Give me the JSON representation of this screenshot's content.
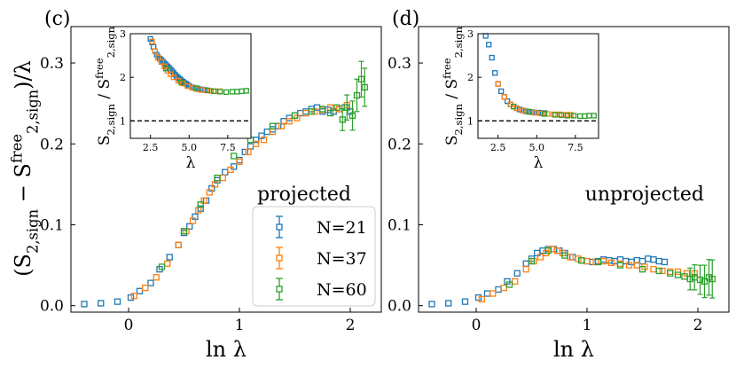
{
  "chart_data": {
    "type": "scatter",
    "shared_ylabel": "(S_2,sign − S^free_2,sign)/λ",
    "legend": {
      "placement": "lower-right of panel (c)",
      "entries": [
        {
          "name": "N=21",
          "color": "#1f77b4"
        },
        {
          "name": "N=37",
          "color": "#ff7f0e"
        },
        {
          "name": "N=60",
          "color": "#2ca02c"
        }
      ]
    },
    "panels": [
      {
        "panel_label": "(c)",
        "annotation": "projected",
        "xlabel": "ln λ",
        "xlim": [
          -0.52,
          2.28
        ],
        "ylim": [
          -0.008,
          0.345
        ],
        "xticks": [
          0,
          1,
          2
        ],
        "yticks": [
          0.0,
          0.1,
          0.2,
          0.3
        ],
        "series": [
          {
            "name": "N=21",
            "color": "#1f77b4",
            "x": [
              -0.4,
              -0.25,
              -0.1,
              0.02,
              0.1,
              0.2,
              0.28,
              0.37,
              0.45,
              0.5,
              0.55,
              0.6,
              0.65,
              0.7,
              0.75,
              0.8,
              0.87,
              0.95,
              1.0,
              1.05,
              1.1,
              1.15,
              1.2,
              1.25,
              1.3,
              1.35,
              1.4,
              1.45,
              1.5,
              1.55,
              1.6,
              1.65,
              1.7,
              1.75,
              1.8,
              1.85,
              1.9,
              1.95,
              2.0
            ],
            "y": [
              0.002,
              0.003,
              0.005,
              0.01,
              0.018,
              0.028,
              0.045,
              0.06,
              0.075,
              0.09,
              0.098,
              0.11,
              0.12,
              0.13,
              0.145,
              0.155,
              0.165,
              0.172,
              0.18,
              0.19,
              0.197,
              0.205,
              0.21,
              0.215,
              0.218,
              0.222,
              0.228,
              0.232,
              0.235,
              0.238,
              0.24,
              0.243,
              0.245,
              0.24,
              0.242,
              0.24,
              0.243,
              0.245,
              0.24
            ]
          },
          {
            "name": "N=37",
            "color": "#ff7f0e",
            "x": [
              0.05,
              0.15,
              0.25,
              0.35,
              0.45,
              0.52,
              0.58,
              0.63,
              0.68,
              0.73,
              0.78,
              0.85,
              0.92,
              1.0,
              1.08,
              1.15,
              1.22,
              1.3,
              1.38,
              1.45,
              1.52,
              1.6,
              1.68,
              1.75,
              1.82,
              1.9,
              1.97
            ],
            "y": [
              0.012,
              0.022,
              0.035,
              0.052,
              0.075,
              0.092,
              0.105,
              0.118,
              0.13,
              0.14,
              0.15,
              0.158,
              0.168,
              0.178,
              0.19,
              0.2,
              0.205,
              0.215,
              0.222,
              0.228,
              0.232,
              0.238,
              0.24,
              0.242,
              0.245,
              0.243,
              0.248
            ]
          },
          {
            "name": "N=60",
            "color": "#2ca02c",
            "x": [
              0.3,
              0.5,
              0.65,
              0.8,
              0.95,
              1.1,
              1.3,
              1.5,
              1.65,
              1.75,
              1.82,
              1.88,
              1.93,
              1.97,
              2.02,
              2.06,
              2.1,
              2.13
            ],
            "y": [
              0.048,
              0.092,
              0.125,
              0.158,
              0.185,
              0.205,
              0.222,
              0.235,
              0.24,
              0.243,
              0.238,
              0.245,
              0.23,
              0.245,
              0.235,
              0.26,
              0.28,
              0.27
            ]
          }
        ],
        "inset": {
          "xlabel": "λ",
          "ylabel": "S_2,sign / S^free_2,sign",
          "xlim": [
            1.2,
            9.0
          ],
          "ylim": [
            0.6,
            3.0
          ],
          "xticks": [
            2.5,
            5.0,
            7.5
          ],
          "yticks": [
            1,
            2,
            3
          ],
          "reference_line": {
            "y": 1,
            "style": "dashed"
          },
          "series": [
            {
              "name": "N=21",
              "color": "#1f77b4",
              "x": [
                2.5,
                2.6,
                2.7,
                2.8,
                2.9,
                3.0,
                3.1,
                3.2,
                3.3,
                3.4,
                3.5,
                3.6,
                3.7,
                3.8,
                3.9,
                4.0,
                4.1,
                4.2,
                4.3,
                4.4,
                4.5,
                4.6,
                4.7,
                4.8,
                4.9,
                5.0,
                5.2,
                5.4,
                5.6,
                5.8,
                6.0
              ],
              "y": [
                2.88,
                2.8,
                2.7,
                2.6,
                2.52,
                2.46,
                2.43,
                2.4,
                2.36,
                2.32,
                2.29,
                2.25,
                2.22,
                2.18,
                2.14,
                2.1,
                2.06,
                2.02,
                1.99,
                1.96,
                1.93,
                1.9,
                1.87,
                1.85,
                1.83,
                1.8,
                1.77,
                1.75,
                1.73,
                1.72,
                1.71
              ]
            },
            {
              "name": "N=37",
              "color": "#ff7f0e",
              "x": [
                2.6,
                2.8,
                3.0,
                3.2,
                3.4,
                3.6,
                3.8,
                4.0,
                4.3,
                4.6,
                4.9,
                5.2,
                5.5,
                5.8,
                6.1,
                6.4,
                6.7,
                7.0
              ],
              "y": [
                2.82,
                2.6,
                2.45,
                2.35,
                2.25,
                2.15,
                2.07,
                2.0,
                1.92,
                1.86,
                1.8,
                1.76,
                1.73,
                1.71,
                1.7,
                1.69,
                1.68,
                1.68
              ]
            },
            {
              "name": "N=60",
              "color": "#2ca02c",
              "x": [
                3.5,
                4.5,
                5.5,
                6.2,
                6.6,
                7.0,
                7.4,
                7.8,
                8.1,
                8.4,
                8.7
              ],
              "y": [
                2.2,
                1.88,
                1.75,
                1.7,
                1.68,
                1.67,
                1.66,
                1.67,
                1.67,
                1.68,
                1.69
              ]
            }
          ]
        }
      },
      {
        "panel_label": "(d)",
        "annotation": "unprojected",
        "xlabel": "ln λ",
        "xlim": [
          -0.52,
          2.28
        ],
        "ylim": [
          -0.008,
          0.345
        ],
        "xticks": [
          0,
          1,
          2
        ],
        "yticks": [
          0.0,
          0.1,
          0.2,
          0.3
        ],
        "series": [
          {
            "name": "N=21",
            "color": "#1f77b4",
            "x": [
              -0.4,
              -0.25,
              -0.1,
              0.02,
              0.1,
              0.2,
              0.28,
              0.37,
              0.45,
              0.5,
              0.55,
              0.6,
              0.65,
              0.7,
              0.75,
              0.8,
              0.87,
              0.95,
              1.0,
              1.05,
              1.1,
              1.15,
              1.2,
              1.25,
              1.3,
              1.35,
              1.4,
              1.45,
              1.5,
              1.55,
              1.6,
              1.65,
              1.7
            ],
            "y": [
              0.002,
              0.003,
              0.005,
              0.01,
              0.015,
              0.02,
              0.03,
              0.04,
              0.052,
              0.058,
              0.065,
              0.068,
              0.07,
              0.07,
              0.068,
              0.065,
              0.06,
              0.056,
              0.055,
              0.054,
              0.055,
              0.057,
              0.056,
              0.055,
              0.057,
              0.055,
              0.054,
              0.056,
              0.055,
              0.058,
              0.057,
              0.055,
              0.054
            ]
          },
          {
            "name": "N=37",
            "color": "#ff7f0e",
            "x": [
              0.05,
              0.15,
              0.25,
              0.35,
              0.45,
              0.52,
              0.58,
              0.63,
              0.68,
              0.73,
              0.78,
              0.85,
              0.92,
              1.0,
              1.08,
              1.15,
              1.22,
              1.3,
              1.38,
              1.45,
              1.52,
              1.6,
              1.68,
              1.75,
              1.82,
              1.9,
              1.97
            ],
            "y": [
              0.008,
              0.015,
              0.022,
              0.03,
              0.045,
              0.055,
              0.06,
              0.065,
              0.07,
              0.068,
              0.065,
              0.06,
              0.058,
              0.055,
              0.054,
              0.055,
              0.053,
              0.052,
              0.05,
              0.05,
              0.048,
              0.045,
              0.043,
              0.042,
              0.042,
              0.04,
              0.04
            ]
          },
          {
            "name": "N=60",
            "color": "#2ca02c",
            "x": [
              0.3,
              0.5,
              0.65,
              0.8,
              0.95,
              1.1,
              1.3,
              1.5,
              1.65,
              1.75,
              1.82,
              1.88,
              1.93,
              1.97,
              2.02,
              2.06,
              2.1,
              2.13
            ],
            "y": [
              0.026,
              0.055,
              0.068,
              0.062,
              0.056,
              0.054,
              0.05,
              0.045,
              0.043,
              0.04,
              0.038,
              0.036,
              0.033,
              0.035,
              0.032,
              0.03,
              0.035,
              0.033
            ]
          }
        ],
        "inset": {
          "xlabel": "λ",
          "ylabel": "S_2,sign / S^free_2,sign",
          "xlim": [
            1.2,
            9.0
          ],
          "ylim": [
            0.6,
            3.0
          ],
          "xticks": [
            2.5,
            5.0,
            7.5
          ],
          "yticks": [
            1,
            2,
            3
          ],
          "reference_line": {
            "y": 1,
            "style": "dashed"
          },
          "series": [
            {
              "name": "N=21",
              "color": "#1f77b4",
              "x": [
                1.7,
                1.9,
                2.1,
                2.3,
                2.5,
                2.7,
                2.9,
                3.1,
                3.3,
                3.5,
                3.7,
                3.9,
                4.1,
                4.3,
                4.5,
                4.7,
                4.9,
                5.1,
                5.3,
                5.5
              ],
              "y": [
                2.95,
                2.75,
                2.45,
                2.1,
                1.85,
                1.68,
                1.55,
                1.45,
                1.38,
                1.33,
                1.29,
                1.26,
                1.24,
                1.22,
                1.21,
                1.2,
                1.19,
                1.19,
                1.18,
                1.18
              ]
            },
            {
              "name": "N=37",
              "color": "#ff7f0e",
              "x": [
                2.5,
                2.9,
                3.3,
                3.7,
                4.1,
                4.5,
                4.9,
                5.3,
                5.7,
                6.1,
                6.5,
                6.9,
                7.2
              ],
              "y": [
                1.85,
                1.55,
                1.38,
                1.29,
                1.24,
                1.21,
                1.19,
                1.17,
                1.16,
                1.15,
                1.15,
                1.14,
                1.14
              ]
            },
            {
              "name": "N=60",
              "color": "#2ca02c",
              "x": [
                3.5,
                4.5,
                5.5,
                6.2,
                6.6,
                7.0,
                7.4,
                7.8,
                8.1,
                8.4,
                8.7
              ],
              "y": [
                1.33,
                1.21,
                1.16,
                1.14,
                1.13,
                1.12,
                1.12,
                1.11,
                1.11,
                1.12,
                1.12
              ]
            }
          ]
        }
      }
    ]
  }
}
